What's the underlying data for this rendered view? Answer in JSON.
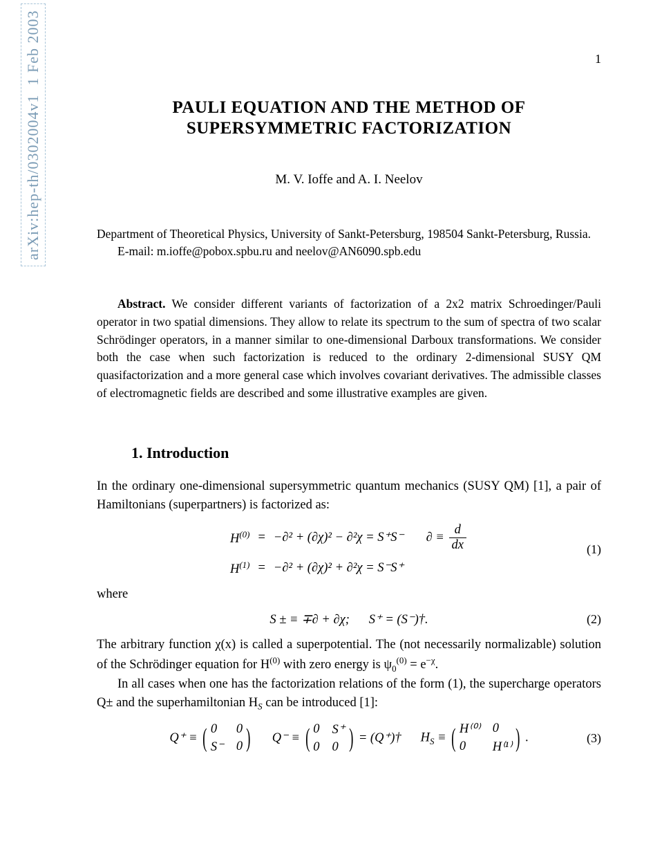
{
  "page_number": "1",
  "arxiv": {
    "id": "arXiv:hep-th/0302004v1",
    "date": "1 Feb 2003",
    "border_color": "#a8c4d8",
    "text_color": "#7a9bb5"
  },
  "title_line1": "PAULI EQUATION AND THE METHOD OF",
  "title_line2": "SUPERSYMMETRIC FACTORIZATION",
  "authors": "M. V. Ioffe and A. I. Neelov",
  "affiliation": "Department of Theoretical Physics, University of Sankt-Petersburg, 198504 Sankt-Petersburg, Russia.",
  "email": "E-mail: m.ioffe@pobox.spbu.ru and neelov@AN6090.spb.edu",
  "abstract_label": "Abstract.",
  "abstract_text": "We consider different variants of factorization of a 2x2 matrix Schroedinger/Pauli operator in two spatial dimensions. They allow to relate its spectrum to the sum of spectra of two scalar Schrödinger operators, in a manner similar to one-dimensional Darboux transformations. We consider both the case when such factorization is reduced to the ordinary 2-dimensional SUSY QM quasifactorization and a more general case which involves covariant derivatives. The admissible classes of electromagnetic fields are described and some illustrative examples are given.",
  "section1": "1. Introduction",
  "intro_p1": "In the ordinary one-dimensional supersymmetric quantum mechanics (SUSY QM) [1], a pair of Hamiltonians (superpartners) is factorized as:",
  "eq1": {
    "H0_lhs": "H",
    "H0_sup": "(0)",
    "eq_sym": "=",
    "H0_rhs": "−∂² + (∂χ)² − ∂²χ = S⁺S⁻",
    "partial_def": "∂ ≡",
    "frac_num": "d",
    "frac_den": "dx",
    "H1_lhs": "H",
    "H1_sup": "(1)",
    "H1_rhs": "−∂² + (∂χ)² + ∂²χ = S⁻S⁺",
    "num": "(1)"
  },
  "where": "where",
  "eq2": {
    "content_a": "S ± ≡ ∓∂ + ∂χ;",
    "content_b": "S⁺ = (S⁻)†.",
    "num": "(2)"
  },
  "intro_p2a": "The arbitrary function χ(x) is called a superpotential. The (not necessarily normalizable) solution of the Schrödinger equation for H",
  "intro_p2_sup1": "(0)",
  "intro_p2b": " with zero energy is ψ",
  "intro_p2_sub": "0",
  "intro_p2_sup2": "(0)",
  "intro_p2c": " = e",
  "intro_p2_sup3": "−χ",
  "intro_p2d": ".",
  "intro_p3": "In all cases when one has the factorization relations of the form (1), the supercharge operators Q± and the superhamiltonian H",
  "intro_p3_sub": "S",
  "intro_p3b": " can be introduced [1]:",
  "eq3": {
    "Qplus": "Q⁺ ≡",
    "m1": [
      "0",
      "0",
      "S⁻",
      "0"
    ],
    "Qminus": "Q⁻ ≡",
    "m2": [
      "0",
      "S⁺",
      "0",
      "0"
    ],
    "Qdagger": "= (Q⁺)†",
    "Hs": "H",
    "Hs_sub": "S",
    "Hs_def": " ≡",
    "m3": [
      "H⁽⁰⁾",
      "0",
      "0",
      "H⁽¹⁾"
    ],
    "period": ".",
    "num": "(3)"
  },
  "colors": {
    "background": "#ffffff",
    "text": "#000000"
  },
  "fonts": {
    "body_family": "Times New Roman",
    "title_size_pt": 19,
    "body_size_pt": 14,
    "section_size_pt": 16
  }
}
